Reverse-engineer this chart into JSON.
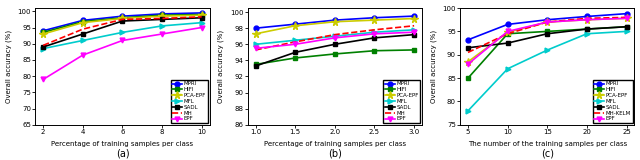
{
  "subplot_a": {
    "x": [
      2,
      4,
      6,
      8,
      10
    ],
    "MPRI": [
      94.0,
      97.2,
      98.5,
      99.2,
      99.5
    ],
    "HIFI": [
      93.5,
      96.8,
      98.0,
      98.8,
      99.0
    ],
    "PCA_EPF": [
      93.0,
      96.5,
      97.8,
      98.5,
      98.8
    ],
    "MFL": [
      88.5,
      91.0,
      93.5,
      95.5,
      96.5
    ],
    "SADL": [
      89.0,
      93.0,
      97.0,
      97.5,
      98.0
    ],
    "MH": [
      89.5,
      94.5,
      97.5,
      97.8,
      98.3
    ],
    "EPF": [
      79.0,
      86.5,
      91.0,
      93.0,
      95.0
    ],
    "xlabel": "Percentage of training samples per class",
    "ylabel": "Overall accuracy (%)",
    "ylim": [
      65,
      101
    ],
    "yticks": [
      65,
      70,
      75,
      80,
      85,
      90,
      95,
      100
    ],
    "xticks": [
      2,
      4,
      6,
      8,
      10
    ],
    "label": "(a)"
  },
  "subplot_b": {
    "x": [
      1.0,
      1.5,
      2.0,
      2.5,
      3.0
    ],
    "MPRI": [
      98.0,
      98.5,
      99.0,
      99.3,
      99.5
    ],
    "HIFI": [
      93.5,
      94.3,
      94.8,
      95.2,
      95.3
    ],
    "PCA_EPF": [
      97.3,
      98.3,
      98.8,
      99.0,
      99.2
    ],
    "MFL": [
      96.0,
      96.5,
      97.0,
      97.5,
      97.8
    ],
    "SADL": [
      93.3,
      95.0,
      96.0,
      96.8,
      97.2
    ],
    "MH": [
      95.3,
      96.3,
      97.2,
      97.8,
      98.3
    ],
    "EPF": [
      95.5,
      96.0,
      96.8,
      97.3,
      97.5
    ],
    "xlabel": "Percentage of training samples per class",
    "ylabel": "Overall accuracy (%)",
    "ylim": [
      86,
      100.5
    ],
    "yticks": [
      86,
      88,
      90,
      92,
      94,
      96,
      98,
      100
    ],
    "xticks": [
      1.0,
      1.5,
      2.0,
      2.5,
      3.0
    ],
    "label": "(b)"
  },
  "subplot_c": {
    "x": [
      5,
      10,
      15,
      20,
      25
    ],
    "MPRI": [
      93.2,
      96.5,
      97.5,
      98.2,
      98.8
    ],
    "HIFI": [
      85.0,
      94.5,
      95.0,
      95.5,
      96.0
    ],
    "PCA_EPF": [
      88.5,
      94.8,
      97.0,
      97.5,
      97.8
    ],
    "MFL": [
      78.0,
      87.0,
      91.0,
      94.5,
      95.0
    ],
    "SADL": [
      91.5,
      92.5,
      94.5,
      95.5,
      96.0
    ],
    "MH_KELM": [
      90.5,
      94.5,
      97.0,
      97.8,
      98.0
    ],
    "EPF": [
      88.0,
      95.0,
      97.0,
      97.5,
      97.8
    ],
    "xlabel": "The number of the training samples per class",
    "ylabel": "Overall accuracy (%)",
    "ylim": [
      75,
      100
    ],
    "yticks": [
      75,
      80,
      85,
      90,
      95,
      100
    ],
    "xticks": [
      5,
      10,
      15,
      20,
      25
    ],
    "label": "(c)"
  },
  "colors": {
    "MPRI": "#0000ff",
    "HIFI": "#008000",
    "PCA_EPF": "#cccc00",
    "MFL": "#00cccc",
    "SADL": "#000000",
    "MH": "#ff0000",
    "MH_KELM": "#ff0000",
    "EPF": "#ff00ff"
  },
  "markers": {
    "MPRI": "o",
    "HIFI": "s",
    "PCA_EPF": "*",
    "MFL": ">",
    "SADL": "s",
    "MH": "",
    "MH_KELM": "",
    "EPF": "v"
  }
}
